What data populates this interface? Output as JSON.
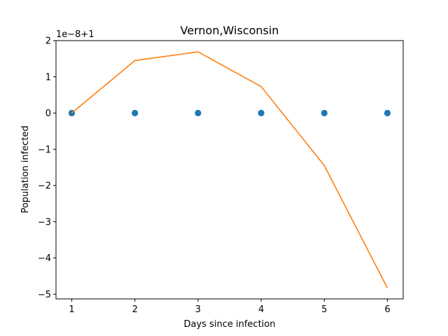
{
  "chart_data": {
    "type": "scatter+line",
    "title": "Vernon,Wisconsin",
    "xlabel": "Days since infection",
    "ylabel": "Population infected",
    "offset_label": "1e−8+1",
    "x": [
      1,
      2,
      3,
      4,
      5,
      6
    ],
    "series": [
      {
        "kind": "scatter",
        "color": "#1f77b4",
        "values": [
          0,
          0,
          0,
          0,
          0,
          0
        ]
      },
      {
        "kind": "line",
        "color": "#ff7f0e",
        "values": [
          0.0,
          1.45,
          1.69,
          0.73,
          -1.45,
          -4.83
        ]
      }
    ],
    "xlim": [
      0.75,
      6.25
    ],
    "ylim": [
      -5.13,
      2.0
    ],
    "xticks": [
      1,
      2,
      3,
      4,
      5,
      6
    ],
    "xtick_labels": [
      "1",
      "2",
      "3",
      "4",
      "5",
      "6"
    ],
    "yticks": [
      2,
      1,
      0,
      -1,
      -2,
      -3,
      -4,
      -5
    ],
    "ytick_labels": [
      "2",
      "1",
      "0",
      "−1",
      "−2",
      "−3",
      "−4",
      "−5"
    ],
    "grid": false
  }
}
